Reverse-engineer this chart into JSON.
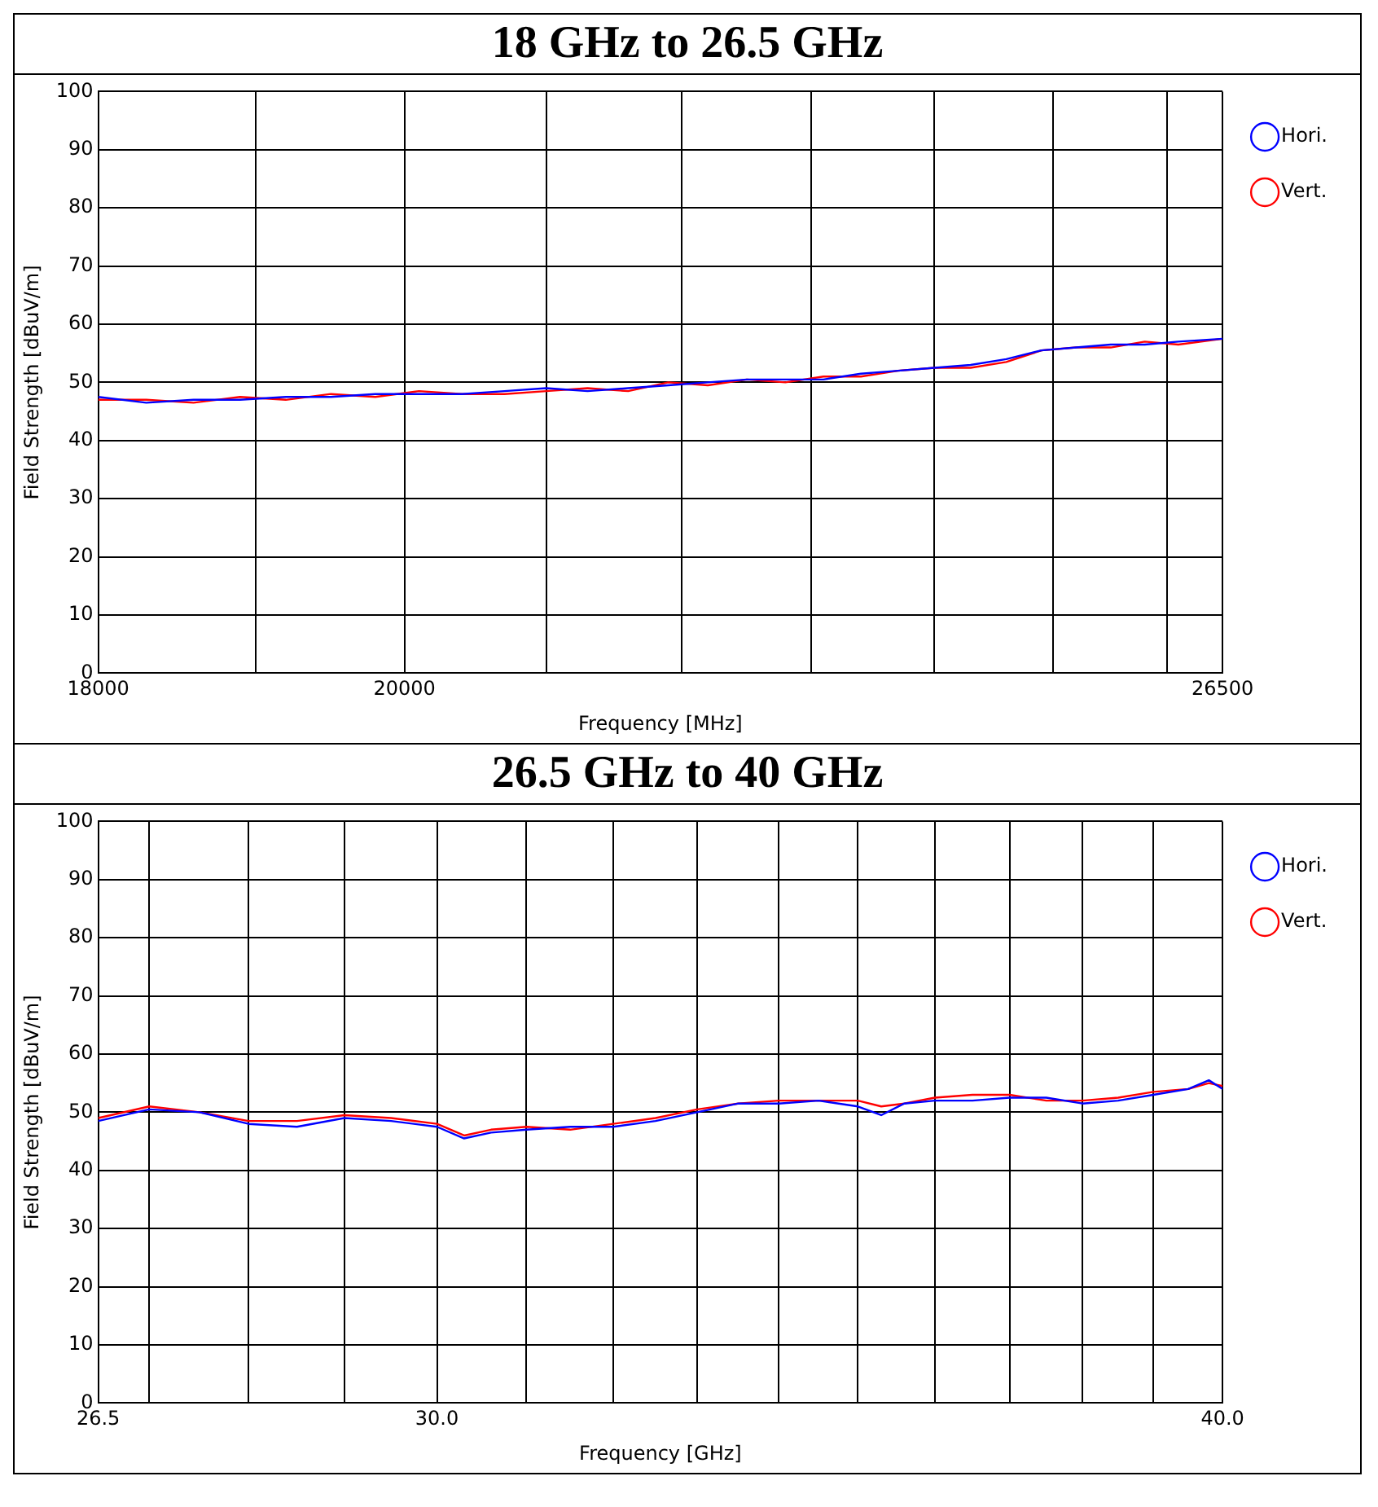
{
  "chart_data": [
    {
      "type": "line",
      "title": "18 GHz to 26.5 GHz",
      "xlabel": "Frequency [MHz]",
      "ylabel": "Field Strength [dBuV/m]",
      "log": "x",
      "grid": true,
      "legend": "right",
      "marker": "none",
      "line_style": "solid",
      "x": [
        18000,
        18300,
        18600,
        18900,
        19200,
        19500,
        19800,
        20100,
        20400,
        20700,
        21000,
        21300,
        21600,
        21900,
        22200,
        22500,
        22800,
        23100,
        23400,
        23700,
        24000,
        24300,
        24600,
        24900,
        25200,
        25500,
        25800,
        26100,
        26500
      ],
      "xlim": [
        18000,
        26500
      ],
      "ylim": [
        0,
        100
      ],
      "yticks": [
        0,
        10,
        20,
        30,
        40,
        50,
        60,
        70,
        80,
        90,
        100
      ],
      "xticks": [
        18000,
        {
          "value": 19000,
          "label": null
        },
        20000,
        {
          "value": 21000,
          "label": null
        },
        {
          "value": 22000,
          "label": null
        },
        {
          "value": 23000,
          "label": null
        },
        {
          "value": 24000,
          "label": null
        },
        {
          "value": 25000,
          "label": null
        },
        {
          "value": 26000,
          "label": null
        },
        26500
      ],
      "series": [
        {
          "name": "Hori.",
          "color": "#0000ff",
          "values": [
            47.5,
            46.5,
            47,
            47,
            47.5,
            47.5,
            48,
            48,
            48,
            48.5,
            49,
            48.5,
            49,
            49.5,
            50,
            50.5,
            50.5,
            50.5,
            51.5,
            52,
            52.5,
            53,
            54,
            55.5,
            56,
            56.5,
            56.5,
            57,
            57.5
          ]
        },
        {
          "name": "Vert.",
          "color": "#ff0000",
          "values": [
            47,
            47,
            46.5,
            47.5,
            47,
            48,
            47.5,
            48.5,
            48,
            48,
            48.5,
            49,
            48.5,
            50,
            49.5,
            50.5,
            50,
            51,
            51,
            52,
            52.5,
            52.5,
            53.5,
            55.5,
            56,
            56,
            57,
            56.5,
            57.5
          ]
        }
      ]
    },
    {
      "type": "line",
      "title": "26.5 GHz to 40 GHz",
      "xlabel": "Frequency [GHz]",
      "ylabel": "Field Strength [dBuV/m]",
      "log": "x",
      "grid": true,
      "legend": "right",
      "marker": "none",
      "line_style": "solid",
      "x": [
        26.5,
        27,
        27.5,
        28,
        28.5,
        29,
        29.5,
        30,
        30.3,
        30.6,
        31,
        31.5,
        32,
        32.5,
        33,
        33.5,
        34,
        34.5,
        35,
        35.3,
        35.6,
        36,
        36.5,
        37,
        37.5,
        38,
        38.5,
        39,
        39.5,
        39.8,
        40
      ],
      "xlim": [
        26.5,
        40
      ],
      "ylim": [
        0,
        100
      ],
      "yticks": [
        0,
        10,
        20,
        30,
        40,
        50,
        60,
        70,
        80,
        90,
        100
      ],
      "xticks": [
        26.5,
        {
          "value": 27,
          "label": null
        },
        {
          "value": 28,
          "label": null
        },
        {
          "value": 29,
          "label": null
        },
        {
          "value": 30,
          "label": "30.0"
        },
        {
          "value": 31,
          "label": null
        },
        {
          "value": 32,
          "label": null
        },
        {
          "value": 33,
          "label": null
        },
        {
          "value": 34,
          "label": null
        },
        {
          "value": 35,
          "label": null
        },
        {
          "value": 36,
          "label": null
        },
        {
          "value": 37,
          "label": null
        },
        {
          "value": 38,
          "label": null
        },
        {
          "value": 39,
          "label": null
        },
        {
          "value": 40,
          "label": "40.0"
        }
      ],
      "series": [
        {
          "name": "Hori.",
          "color": "#0000ff",
          "values": [
            48.5,
            50.5,
            50,
            48,
            47.5,
            49,
            48.5,
            47.5,
            45.5,
            46.5,
            47,
            47.5,
            47.5,
            48.5,
            50,
            51.5,
            51.5,
            52,
            51,
            49.5,
            51.5,
            52,
            52,
            52.5,
            52.5,
            51.5,
            52,
            53,
            54,
            55.5,
            54
          ]
        },
        {
          "name": "Vert.",
          "color": "#ff0000",
          "values": [
            49,
            51,
            50,
            48.5,
            48.5,
            49.5,
            49,
            48,
            46,
            47,
            47.5,
            47,
            48,
            49,
            50.5,
            51.5,
            52,
            52,
            52,
            51,
            51.5,
            52.5,
            53,
            53,
            52,
            52,
            52.5,
            53.5,
            54,
            55,
            54.5
          ]
        }
      ]
    }
  ]
}
